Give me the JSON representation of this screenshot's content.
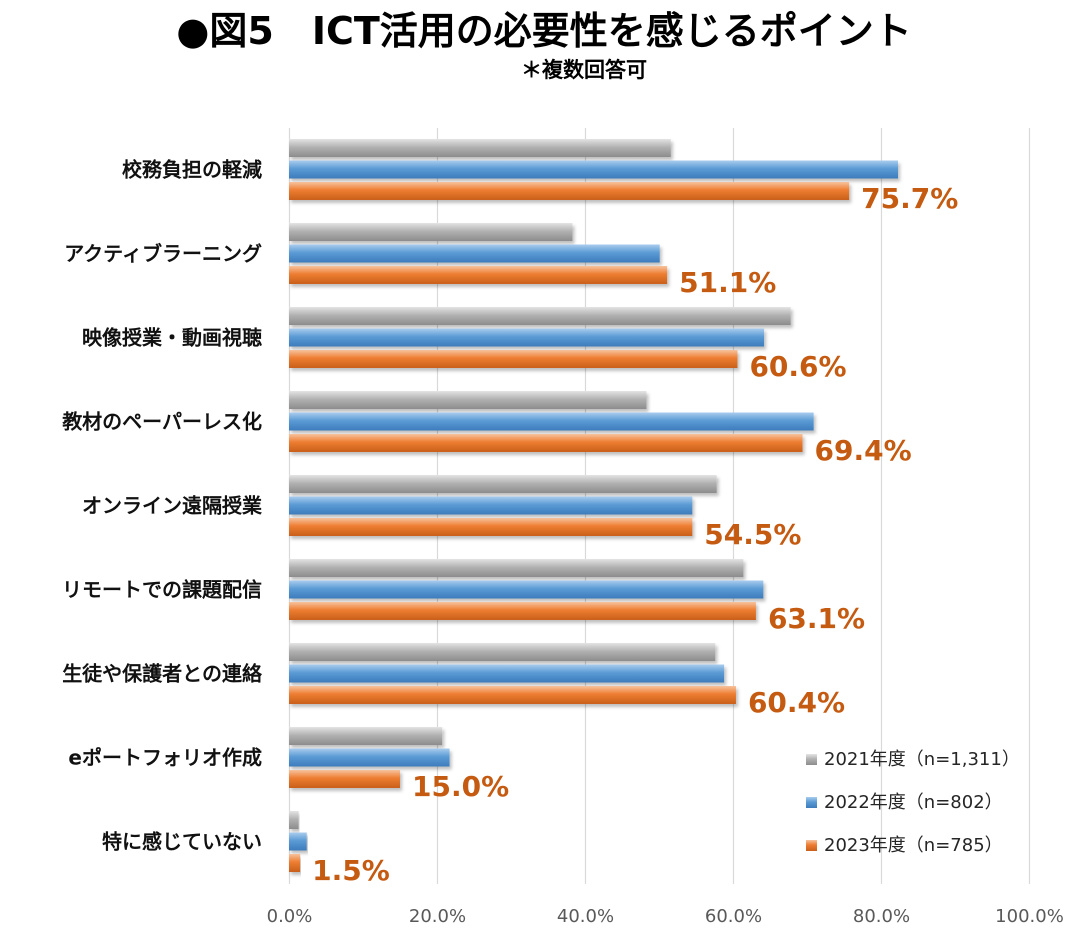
{
  "chart_data": {
    "type": "bar",
    "orientation": "horizontal",
    "title": "●図5　ICT活用の必要性を感じるポイント",
    "subtitle": "＊複数回答可",
    "categories": [
      "校務負担の軽減",
      "アクティブラーニング",
      "映像授業・動画視聴",
      "教材のペーパーレス化",
      "オンライン遠隔授業",
      "リモートでの課題配信",
      "生徒や保護者との連絡",
      "eポートフォリオ作成",
      "特に感じていない"
    ],
    "series": [
      {
        "name": "2021年度（n=1,311）",
        "color": "#a5a5a5",
        "values": [
          51.6,
          38.3,
          67.8,
          48.3,
          57.8,
          61.4,
          57.6,
          20.7,
          1.3
        ]
      },
      {
        "name": "2022年度（n=802）",
        "color": "#5b9bd5",
        "values": [
          82.3,
          50.1,
          64.2,
          70.9,
          54.5,
          64.1,
          58.8,
          21.7,
          2.4
        ]
      },
      {
        "name": "2023年度（n=785）",
        "color": "#ed7d31",
        "values": [
          75.7,
          51.1,
          60.6,
          69.4,
          54.5,
          63.1,
          60.4,
          15.0,
          1.5
        ]
      }
    ],
    "data_labels": [
      "75.7%",
      "51.1%",
      "60.6%",
      "69.4%",
      "54.5%",
      "63.1%",
      "60.4%",
      "15.0%",
      "1.5%"
    ],
    "xlim": [
      0,
      100
    ],
    "xticks": [
      0,
      20,
      40,
      60,
      80,
      100
    ],
    "xtick_labels": [
      "0.0%",
      "20.0%",
      "40.0%",
      "60.0%",
      "80.0%",
      "100.0%"
    ],
    "grid": true,
    "legend_position": "bottom-right",
    "label_color": "#c55a11"
  }
}
